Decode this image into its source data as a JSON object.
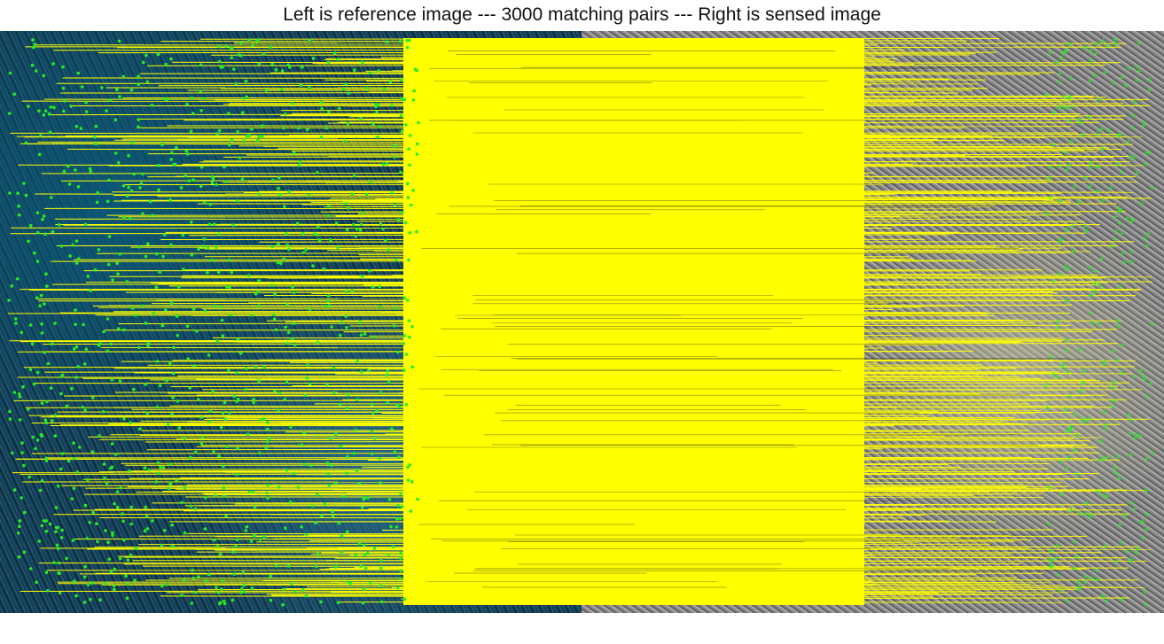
{
  "figure": {
    "title": "Left is reference image --- 3000 matching pairs --- Right is sensed image"
  },
  "colors": {
    "match_line": "#ffff00",
    "keypoint": "#22ee22",
    "background": "#ffffff"
  },
  "panels": [
    {
      "id": "reference",
      "texture": "blue-green-satellite"
    },
    {
      "id": "sensed",
      "texture": "grayscale-satellite"
    }
  ],
  "matches": {
    "count": 3000
  }
}
